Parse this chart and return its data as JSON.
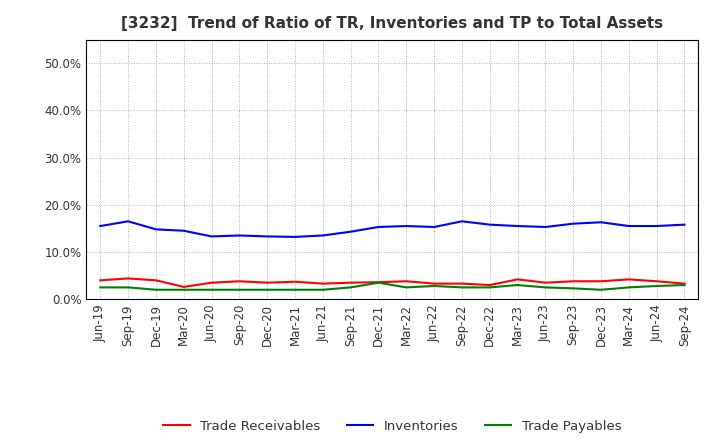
{
  "title": "[3232]  Trend of Ratio of TR, Inventories and TP to Total Assets",
  "x_labels": [
    "Jun-19",
    "Sep-19",
    "Dec-19",
    "Mar-20",
    "Jun-20",
    "Sep-20",
    "Dec-20",
    "Mar-21",
    "Jun-21",
    "Sep-21",
    "Dec-21",
    "Mar-22",
    "Jun-22",
    "Sep-22",
    "Dec-22",
    "Mar-23",
    "Jun-23",
    "Sep-23",
    "Dec-23",
    "Mar-24",
    "Jun-24",
    "Sep-24"
  ],
  "trade_receivables": [
    4.0,
    4.4,
    4.0,
    2.6,
    3.5,
    3.8,
    3.5,
    3.7,
    3.3,
    3.5,
    3.6,
    3.8,
    3.3,
    3.3,
    3.0,
    4.2,
    3.5,
    3.8,
    3.8,
    4.2,
    3.8,
    3.3
  ],
  "inventories": [
    15.5,
    16.5,
    14.8,
    14.5,
    13.3,
    13.5,
    13.3,
    13.2,
    13.5,
    14.3,
    15.3,
    15.5,
    15.3,
    16.5,
    15.8,
    15.5,
    15.3,
    16.0,
    16.3,
    15.5,
    15.5,
    15.8
  ],
  "trade_payables": [
    2.5,
    2.5,
    2.0,
    2.0,
    2.0,
    2.0,
    2.0,
    2.0,
    2.0,
    2.5,
    3.5,
    2.5,
    2.8,
    2.5,
    2.5,
    3.0,
    2.5,
    2.3,
    2.0,
    2.5,
    2.8,
    3.0
  ],
  "ylim": [
    0,
    55
  ],
  "yticks": [
    0,
    10,
    20,
    30,
    40,
    50
  ],
  "ytick_labels": [
    "0.0%",
    "10.0%",
    "20.0%",
    "30.0%",
    "40.0%",
    "50.0%"
  ],
  "line_colors": {
    "tr": "#ff0000",
    "inv": "#0000ff",
    "tp": "#008000"
  },
  "line_width": 1.5,
  "legend_labels": [
    "Trade Receivables",
    "Inventories",
    "Trade Payables"
  ],
  "bg_color": "#ffffff",
  "plot_bg_color": "#ffffff",
  "grid_color": "#999999",
  "title_color": "#333333",
  "title_fontsize": 11,
  "tick_fontsize": 8.5,
  "legend_fontsize": 9.5
}
